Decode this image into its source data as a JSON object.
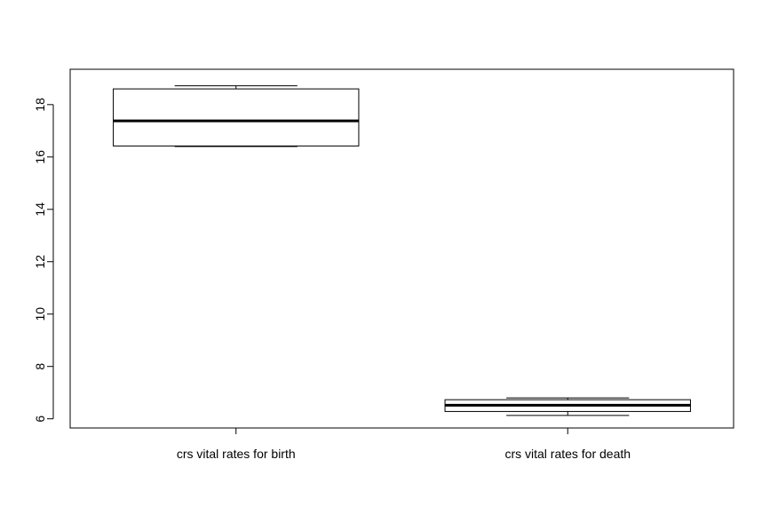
{
  "chart_data": {
    "type": "box",
    "title": "",
    "xlabel": "",
    "ylabel": "",
    "ylim": [
      5.65,
      19.35
    ],
    "yticks": [
      6,
      8,
      10,
      12,
      14,
      16,
      18
    ],
    "categories": [
      "crs vital rates for birth",
      "crs vital rates for death"
    ],
    "boxes": [
      {
        "category": "crs vital rates for birth",
        "min": 16.4,
        "q1": 16.42,
        "median": 17.38,
        "q3": 18.6,
        "max": 18.72
      },
      {
        "category": "crs vital rates for death",
        "min": 6.13,
        "q1": 6.28,
        "median": 6.52,
        "q3": 6.73,
        "max": 6.8
      }
    ],
    "grid": false,
    "legend": "none",
    "colors": {
      "box_fill": "#ffffff",
      "stroke": "#000000"
    }
  }
}
